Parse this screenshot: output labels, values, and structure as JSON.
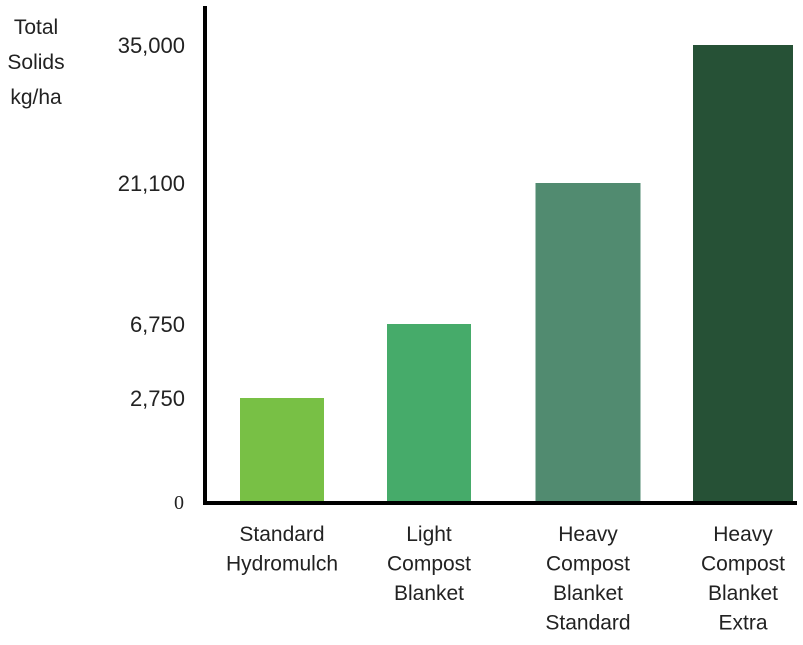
{
  "chart_data": {
    "type": "bar",
    "ylabel_lines": [
      "Total",
      "Solids",
      "kg/ha"
    ],
    "yticks": [
      {
        "value": 0,
        "label": "0"
      },
      {
        "value": 2750,
        "label": "2,750"
      },
      {
        "value": 6750,
        "label": "6,750"
      },
      {
        "value": 21100,
        "label": "21,100"
      },
      {
        "value": 35000,
        "label": "35,000"
      }
    ],
    "categories": [
      [
        "Standard",
        "Hydromulch"
      ],
      [
        "Light",
        "Compost",
        "Blanket"
      ],
      [
        "Heavy",
        "Compost",
        "Blanket",
        "Standard"
      ],
      [
        "Heavy",
        "Compost",
        "Blanket",
        "Extra"
      ]
    ],
    "values": [
      2750,
      6750,
      21100,
      35000
    ],
    "colors": [
      "#78c045",
      "#46ab6a",
      "#518b70",
      "#265136"
    ],
    "axis_color": "#000000"
  }
}
